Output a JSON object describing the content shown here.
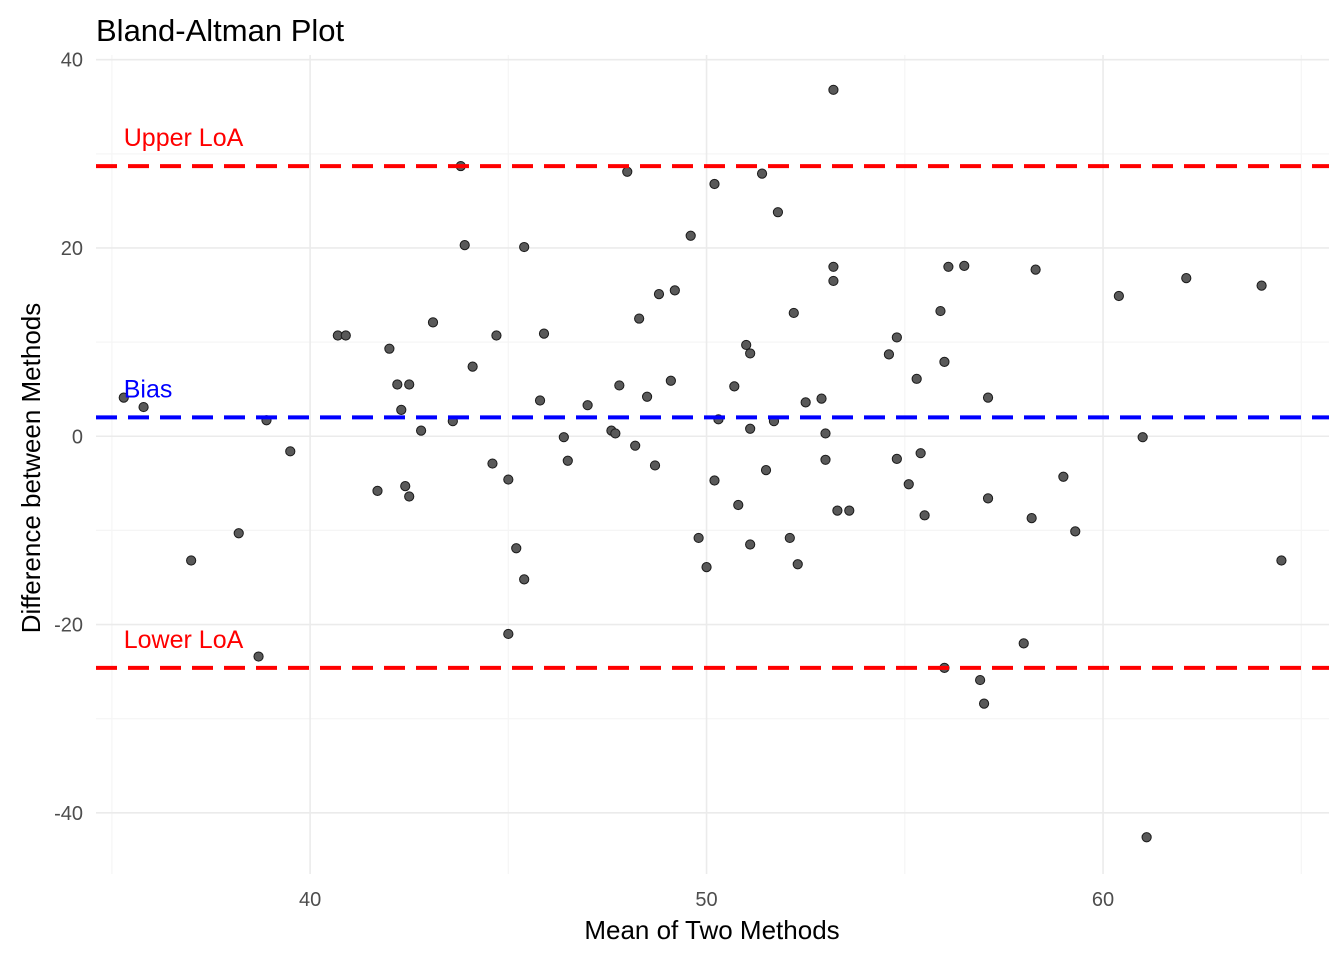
{
  "chart_data": {
    "type": "scatter",
    "title": "Bland-Altman Plot",
    "xlabel": "Mean of Two Methods",
    "ylabel": "Difference between Methods",
    "xlim": [
      34.6,
      65.7
    ],
    "ylim": [
      -46.5,
      40.5
    ],
    "x_ticks": [
      40,
      50,
      60
    ],
    "y_ticks": [
      -40,
      -20,
      0,
      20,
      40
    ],
    "x_minor": [
      35,
      45,
      55,
      65
    ],
    "y_minor": [
      -30,
      -10,
      10,
      30
    ],
    "grid": true,
    "reference_lines": [
      {
        "name": "Upper LoA",
        "y": 28.7,
        "color": "#ff0000",
        "label": "Upper LoA"
      },
      {
        "name": "Bias",
        "y": 2.0,
        "color": "#0000ff",
        "label": "Bias"
      },
      {
        "name": "Lower LoA",
        "y": -24.6,
        "color": "#ff0000",
        "label": "Lower LoA"
      }
    ],
    "points": [
      {
        "x": 35.3,
        "y": 4.1
      },
      {
        "x": 35.8,
        "y": 3.1
      },
      {
        "x": 37.0,
        "y": -13.2
      },
      {
        "x": 38.2,
        "y": -10.3
      },
      {
        "x": 38.7,
        "y": -23.4
      },
      {
        "x": 38.9,
        "y": 1.7
      },
      {
        "x": 39.5,
        "y": -1.6
      },
      {
        "x": 40.7,
        "y": 10.7
      },
      {
        "x": 40.9,
        "y": 10.7
      },
      {
        "x": 41.7,
        "y": -5.8
      },
      {
        "x": 42.0,
        "y": 9.3
      },
      {
        "x": 42.2,
        "y": 5.5
      },
      {
        "x": 42.3,
        "y": 2.8
      },
      {
        "x": 42.4,
        "y": -5.3
      },
      {
        "x": 42.5,
        "y": 5.5
      },
      {
        "x": 42.5,
        "y": -6.4
      },
      {
        "x": 42.8,
        "y": 0.6
      },
      {
        "x": 43.1,
        "y": 12.1
      },
      {
        "x": 43.6,
        "y": 1.6
      },
      {
        "x": 43.8,
        "y": 28.7
      },
      {
        "x": 43.9,
        "y": 20.3
      },
      {
        "x": 44.1,
        "y": 7.4
      },
      {
        "x": 44.6,
        "y": -2.9
      },
      {
        "x": 44.7,
        "y": 10.7
      },
      {
        "x": 45.0,
        "y": -4.6
      },
      {
        "x": 45.0,
        "y": -21.0
      },
      {
        "x": 45.2,
        "y": -11.9
      },
      {
        "x": 45.4,
        "y": 20.1
      },
      {
        "x": 45.4,
        "y": -15.2
      },
      {
        "x": 45.8,
        "y": 3.8
      },
      {
        "x": 45.9,
        "y": 10.9
      },
      {
        "x": 46.4,
        "y": -0.1
      },
      {
        "x": 46.5,
        "y": -2.6
      },
      {
        "x": 47.0,
        "y": 3.3
      },
      {
        "x": 47.6,
        "y": 0.6
      },
      {
        "x": 47.7,
        "y": 0.3
      },
      {
        "x": 47.8,
        "y": 5.4
      },
      {
        "x": 48.0,
        "y": 28.1
      },
      {
        "x": 48.2,
        "y": -1.0
      },
      {
        "x": 48.3,
        "y": 12.5
      },
      {
        "x": 48.5,
        "y": 4.2
      },
      {
        "x": 48.7,
        "y": -3.1
      },
      {
        "x": 48.8,
        "y": 15.1
      },
      {
        "x": 49.1,
        "y": 5.9
      },
      {
        "x": 49.2,
        "y": 15.5
      },
      {
        "x": 49.6,
        "y": 21.3
      },
      {
        "x": 49.8,
        "y": -10.8
      },
      {
        "x": 50.0,
        "y": -13.9
      },
      {
        "x": 50.2,
        "y": -4.7
      },
      {
        "x": 50.2,
        "y": 26.8
      },
      {
        "x": 50.3,
        "y": 1.8
      },
      {
        "x": 50.7,
        "y": 5.3
      },
      {
        "x": 50.8,
        "y": -7.3
      },
      {
        "x": 51.0,
        "y": 9.7
      },
      {
        "x": 51.1,
        "y": 8.8
      },
      {
        "x": 51.1,
        "y": -11.5
      },
      {
        "x": 51.1,
        "y": 0.8
      },
      {
        "x": 51.4,
        "y": 27.9
      },
      {
        "x": 51.5,
        "y": -3.6
      },
      {
        "x": 51.7,
        "y": 1.6
      },
      {
        "x": 51.8,
        "y": 23.8
      },
      {
        "x": 52.1,
        "y": -10.8
      },
      {
        "x": 52.2,
        "y": 13.1
      },
      {
        "x": 52.3,
        "y": -13.6
      },
      {
        "x": 52.5,
        "y": 3.6
      },
      {
        "x": 52.9,
        "y": 4.0
      },
      {
        "x": 53.0,
        "y": 0.3
      },
      {
        "x": 53.0,
        "y": -2.5
      },
      {
        "x": 53.2,
        "y": 18.0
      },
      {
        "x": 53.2,
        "y": 16.5
      },
      {
        "x": 53.2,
        "y": 36.8
      },
      {
        "x": 53.3,
        "y": -7.9
      },
      {
        "x": 53.6,
        "y": -7.9
      },
      {
        "x": 54.6,
        "y": 8.7
      },
      {
        "x": 54.8,
        "y": -2.4
      },
      {
        "x": 54.8,
        "y": 10.5
      },
      {
        "x": 55.1,
        "y": -5.1
      },
      {
        "x": 55.3,
        "y": 6.1
      },
      {
        "x": 55.4,
        "y": -1.8
      },
      {
        "x": 55.5,
        "y": -8.4
      },
      {
        "x": 55.9,
        "y": 13.3
      },
      {
        "x": 56.0,
        "y": 7.9
      },
      {
        "x": 56.0,
        "y": -24.6
      },
      {
        "x": 56.1,
        "y": 18.0
      },
      {
        "x": 56.5,
        "y": 18.1
      },
      {
        "x": 56.9,
        "y": -25.9
      },
      {
        "x": 57.0,
        "y": -28.4
      },
      {
        "x": 57.1,
        "y": 4.1
      },
      {
        "x": 57.1,
        "y": -6.6
      },
      {
        "x": 58.0,
        "y": -22.0
      },
      {
        "x": 58.2,
        "y": -8.7
      },
      {
        "x": 58.3,
        "y": 17.7
      },
      {
        "x": 59.0,
        "y": -4.3
      },
      {
        "x": 59.3,
        "y": -10.1
      },
      {
        "x": 60.4,
        "y": 14.9
      },
      {
        "x": 61.0,
        "y": -0.1
      },
      {
        "x": 61.1,
        "y": -42.6
      },
      {
        "x": 62.1,
        "y": 16.8
      },
      {
        "x": 64.0,
        "y": 16.0
      },
      {
        "x": 64.5,
        "y": -13.2
      }
    ]
  },
  "colors": {
    "point_fill": "#595959",
    "point_stroke": "#1a1a1a",
    "grid_major": "#ebebeb",
    "grid_minor": "#f5f5f5"
  }
}
